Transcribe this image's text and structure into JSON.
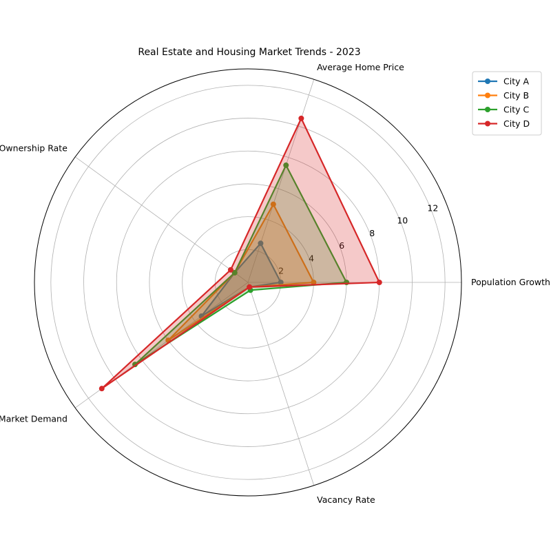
{
  "chart_data": {
    "type": "radar",
    "title": "Real Estate and Housing Market Trends - 2023",
    "axes": [
      "Population Growth",
      "Average Home Price",
      "Home Ownership Rate",
      "Rental Market Demand",
      "Vacancy Rate"
    ],
    "radial_ticks": [
      2,
      4,
      6,
      8,
      10,
      12
    ],
    "rmax": 13,
    "grid": true,
    "legend_position": "top-right",
    "series": [
      {
        "name": "City A",
        "color": "#1f77b4",
        "values": [
          2.0,
          2.5,
          1.0,
          3.5,
          0.3
        ]
      },
      {
        "name": "City B",
        "color": "#ff7f0e",
        "values": [
          4.0,
          5.0,
          1.0,
          6.0,
          0.3
        ]
      },
      {
        "name": "City C",
        "color": "#2ca02c",
        "values": [
          6.0,
          7.5,
          1.0,
          8.5,
          0.5
        ]
      },
      {
        "name": "City D",
        "color": "#d62728",
        "values": [
          8.0,
          10.5,
          1.3,
          11.0,
          0.3
        ]
      }
    ]
  }
}
